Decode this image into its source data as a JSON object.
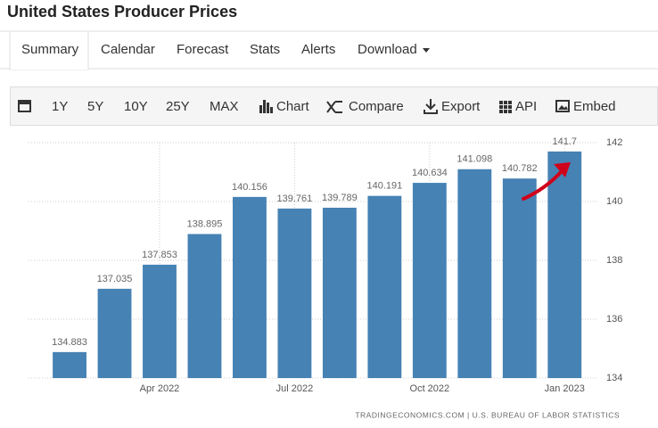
{
  "header": {
    "title": "United States Producer Prices"
  },
  "tabs": [
    "Summary",
    "Calendar",
    "Forecast",
    "Stats",
    "Alerts",
    "Download"
  ],
  "toolbar": [
    "1Y",
    "5Y",
    "10Y",
    "25Y",
    "MAX",
    "Chart",
    "Compare",
    "Export",
    "API",
    "Embed"
  ],
  "chart_data": {
    "type": "bar",
    "categories": [
      null,
      null,
      "Apr 2022",
      null,
      null,
      "Jul 2022",
      null,
      null,
      "Oct 2022",
      null,
      null,
      "Jan 2023"
    ],
    "values": [
      134.883,
      137.035,
      137.853,
      138.895,
      140.156,
      139.761,
      139.789,
      140.191,
      140.634,
      141.098,
      140.782,
      141.7
    ],
    "color": "#4682b4",
    "ylim": [
      134,
      142
    ],
    "yticks": [
      134,
      136,
      138,
      140,
      142
    ],
    "grid": true,
    "source": "TRADINGECONOMICS.COM | U.S. BUREAU OF LABOR STATISTICS"
  }
}
